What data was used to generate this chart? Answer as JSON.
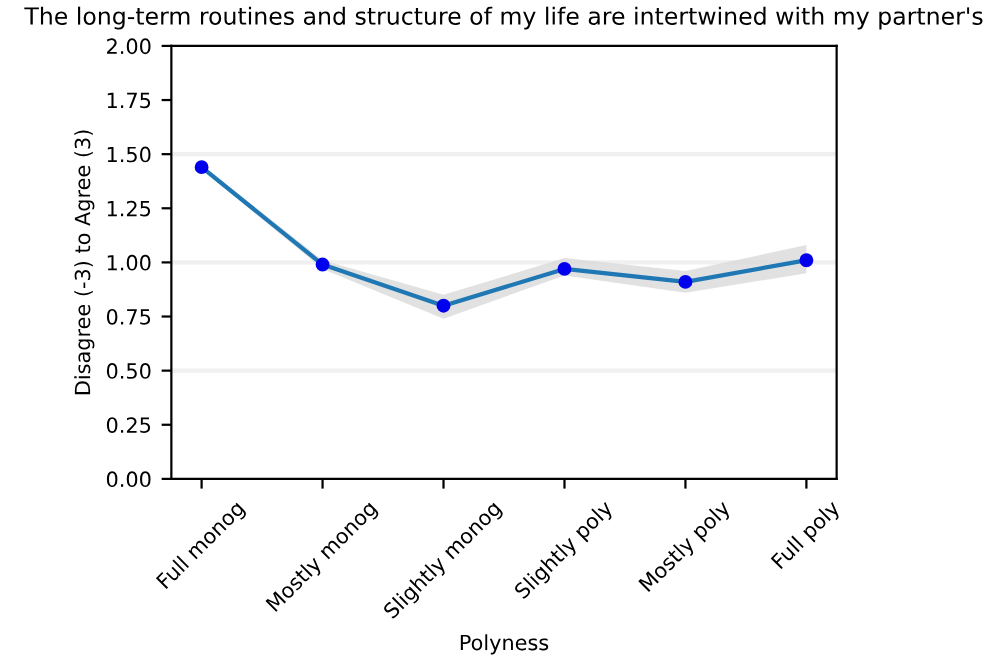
{
  "chart_data": {
    "type": "line",
    "title": "The long-term routines and structure of my life are intertwined with my partner's",
    "xlabel": "Polyness",
    "ylabel": "Disagree (-3) to Agree (3)",
    "categories": [
      "Full monog",
      "Mostly monog",
      "Slightly monog",
      "Slightly poly",
      "Mostly poly",
      "Full poly"
    ],
    "series": [
      {
        "color": "#1f77b4",
        "values": [
          1.44,
          0.99,
          0.8,
          0.97,
          0.91,
          1.01
        ],
        "lower": [
          1.43,
          0.97,
          0.74,
          0.94,
          0.86,
          0.95
        ],
        "upper": [
          1.45,
          1.01,
          0.85,
          1.02,
          0.96,
          1.08
        ]
      }
    ],
    "marker": "circle",
    "ylim": [
      0,
      2
    ],
    "yticks": [
      {
        "value": 0,
        "label": "0.00"
      },
      0.25,
      {
        "value": 0.5,
        "label": "0.50"
      },
      0.75,
      {
        "value": 1,
        "label": "1.00"
      },
      1.25,
      {
        "value": 1.5,
        "label": "1.50"
      },
      1.75,
      {
        "value": 2,
        "label": "2.00"
      }
    ],
    "ref_lines": [
      {
        "axis": "y",
        "value": 0.5,
        "label": null,
        "color": "#f0f0f0"
      },
      {
        "axis": "y",
        "value": 1.0,
        "label": null,
        "color": "#f0f0f0"
      },
      {
        "axis": "y",
        "value": 1.5,
        "label": null,
        "color": "#f0f0f0"
      }
    ]
  }
}
